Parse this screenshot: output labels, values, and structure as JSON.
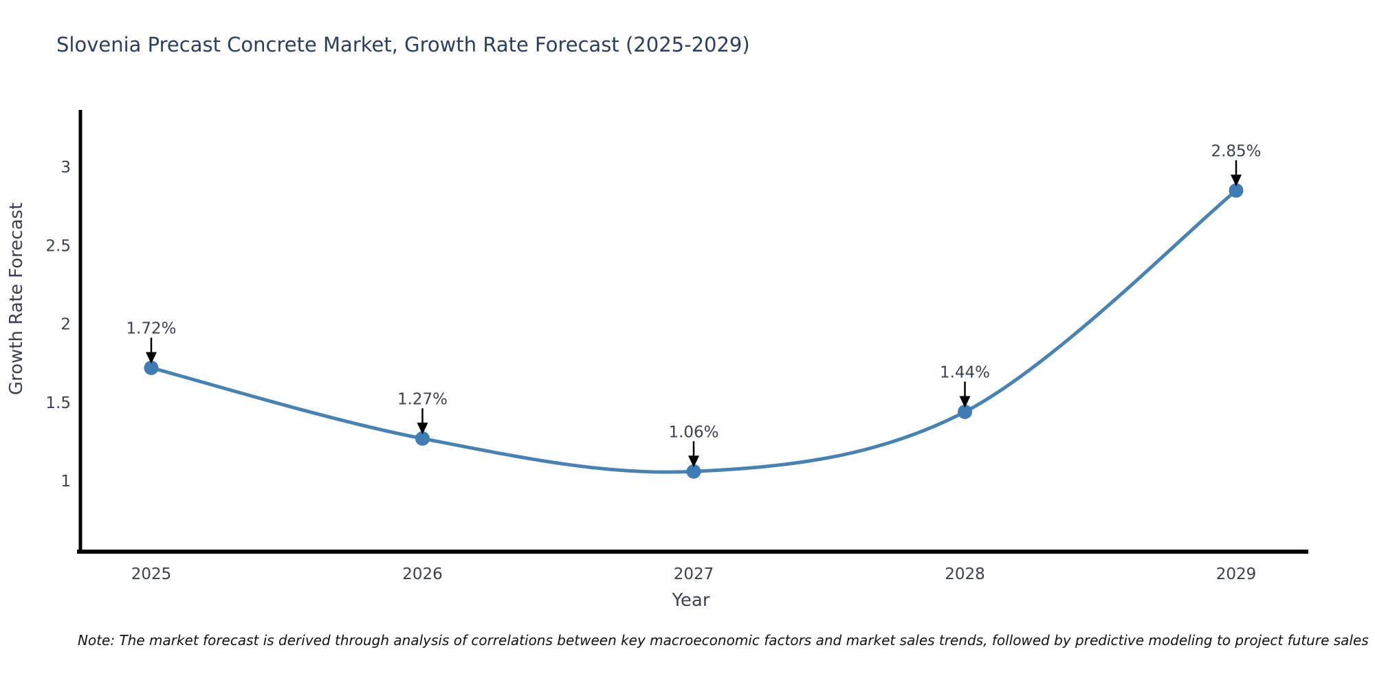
{
  "title": "Slovenia Precast Concrete Market, Growth Rate Forecast (2025-2029)",
  "note": "Note: The market forecast is derived through analysis of correlations between key macroeconomic factors and market sales trends, followed by predictive modeling to project future sales",
  "chart_data": {
    "type": "line",
    "title": "Slovenia Precast Concrete Market, Growth Rate Forecast (2025-2029)",
    "x": [
      "2025",
      "2026",
      "2027",
      "2028",
      "2029"
    ],
    "values": [
      1.72,
      1.27,
      1.06,
      1.44,
      2.85
    ],
    "point_labels": [
      "1.72%",
      "1.27%",
      "1.06%",
      "1.44%",
      "2.85%"
    ],
    "xlabel": "Year",
    "ylabel": "Growth Rate Forecast",
    "yticks": [
      1,
      1.5,
      2,
      2.5,
      3
    ],
    "ylim": [
      0.55,
      3.35
    ],
    "line_shape": "spline",
    "grid": false,
    "legend_position": "none",
    "colors": {
      "line": "#4682b4",
      "marker": "#3e7cb6",
      "axis_line": "#000000",
      "tick_text": "#3b4150",
      "title_text": "#2a3f5f",
      "annotation": "#000000"
    }
  }
}
